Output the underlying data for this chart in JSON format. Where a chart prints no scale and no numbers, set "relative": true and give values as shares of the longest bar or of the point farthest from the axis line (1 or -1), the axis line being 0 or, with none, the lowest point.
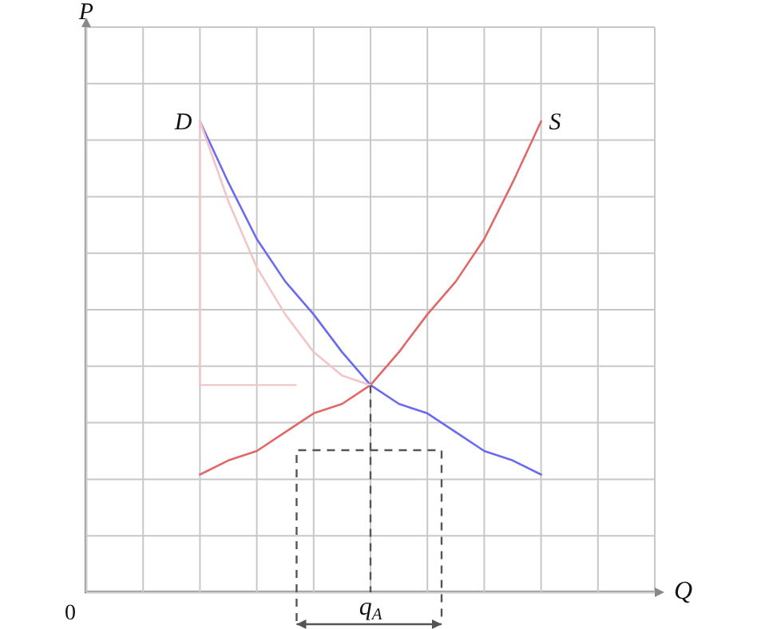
{
  "chart_data": {
    "type": "line",
    "xlabel": "Q",
    "ylabel": "P",
    "relative": true,
    "categories": [
      null,
      null,
      null,
      null,
      null,
      null,
      null,
      null,
      null,
      null,
      null,
      null,
      null,
      null,
      null,
      null,
      null,
      null,
      null,
      null,
      null
    ],
    "grid": true,
    "legend": false,
    "marker": "none",
    "series": [
      {
        "color": "#f2c6c6",
        "values": [
          null,
          null,
          null,
          null,
          1,
          0.83,
          0.69,
          0.59,
          0.51,
          0.46,
          0.44,
          null,
          null,
          null,
          null,
          null,
          null,
          null,
          null,
          null,
          null
        ]
      },
      {
        "name": "D",
        "color": "#6b6bf0",
        "values": [
          null,
          null,
          null,
          null,
          1,
          0.87,
          0.75,
          0.66,
          0.59,
          0.51,
          0.44,
          0.4,
          0.38,
          0.34,
          0.3,
          0.28,
          0.25,
          null,
          null,
          null,
          null
        ]
      },
      {
        "name": "S",
        "color": "#e06868",
        "values": [
          null,
          null,
          null,
          null,
          0.25,
          0.28,
          0.3,
          0.34,
          0.38,
          0.4,
          0.44,
          0.51,
          0.59,
          0.66,
          0.75,
          0.87,
          1,
          null,
          null,
          null,
          null
        ]
      }
    ],
    "annotations": [
      "0",
      "q$_{A}$"
    ]
  }
}
